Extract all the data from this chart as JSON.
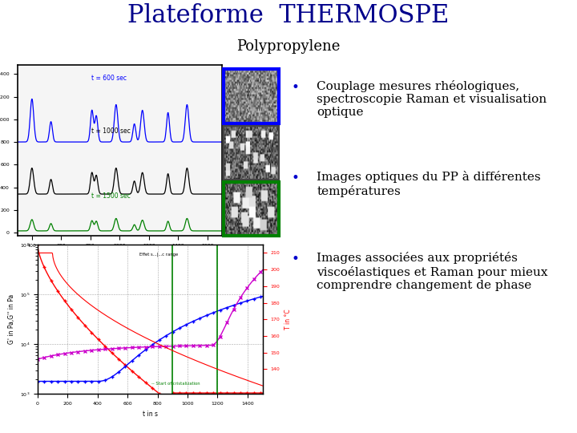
{
  "title": "Plateforme  THERMOSPE",
  "subtitle": "Polypropylene",
  "title_color": "#00008B",
  "subtitle_color": "#000000",
  "title_fontsize": 22,
  "subtitle_fontsize": 13,
  "bullet_points": [
    "Couplage mesures\nrhéologiques, spectroscopie\nRaman et visualisation optique",
    "Images optiques du PP à\ndifférentes températures",
    "Images associées aux\npropriétés viscoélastiques et\nRaman pour mieux\ncomprendre changement de\nphase"
  ],
  "bullet_color": "#0000CC",
  "text_color": "#000000",
  "bullet_fontsize": 11,
  "background_color": "#ffffff",
  "image_border_colors": [
    "#0000FF",
    "#444444",
    "#008000"
  ],
  "raman_peaks": [
    400,
    530,
    810,
    840,
    975,
    1100,
    1155,
    1330,
    1460
  ],
  "raman_widths": [
    12,
    10,
    10,
    10,
    12,
    10,
    12,
    10,
    12
  ],
  "raman_heights_blue": [
    380,
    180,
    280,
    230,
    330,
    160,
    280,
    260,
    330
  ],
  "raman_heights_black": [
    230,
    130,
    190,
    165,
    230,
    115,
    190,
    180,
    230
  ],
  "raman_heights_green": [
    100,
    65,
    90,
    85,
    110,
    55,
    95,
    85,
    110
  ],
  "raman_baselines": [
    800,
    340,
    15
  ]
}
